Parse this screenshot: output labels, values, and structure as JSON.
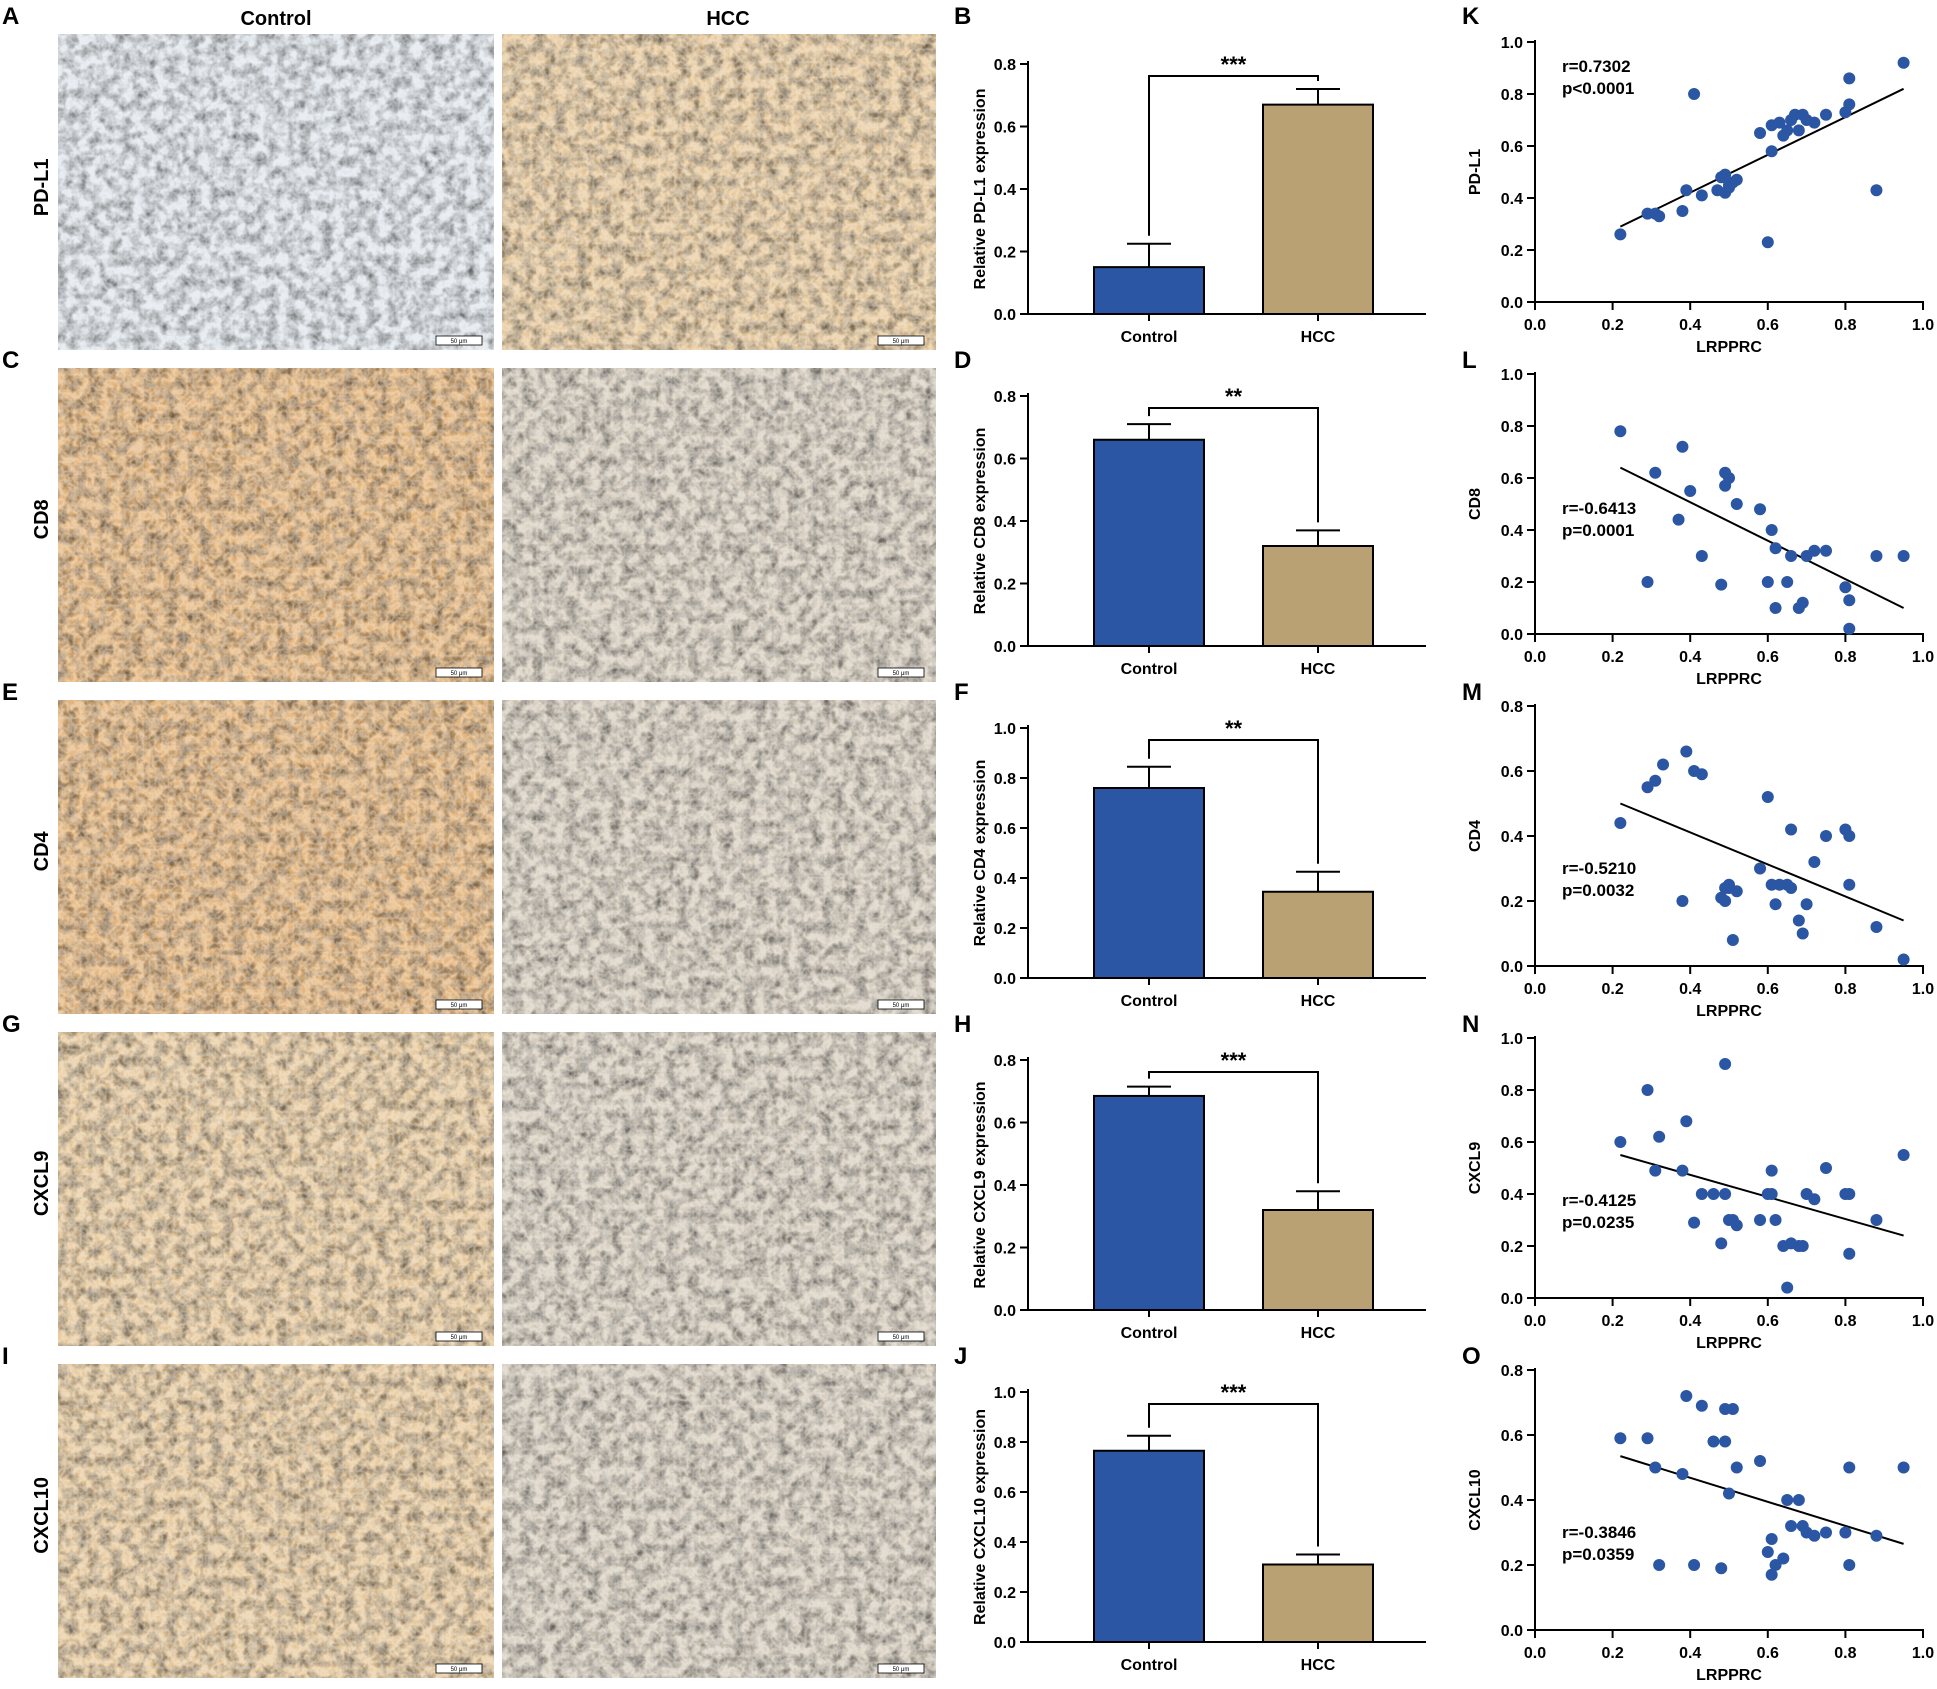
{
  "figure": {
    "micro_col_titles": [
      "Control",
      "HCC"
    ],
    "scale_bar_label": "50 μm",
    "colors": {
      "control_bar": "#2b56a3",
      "hcc_bar": "#b9a173",
      "scatter_point": "#2b56a3",
      "bar_stroke": "#000000"
    },
    "rows": [
      {
        "micro_letter": "A",
        "marker": "PD-L1",
        "bar_letter": "B",
        "scatter_letter": "K",
        "stain": {
          "control": "blue",
          "hcc": "brown"
        }
      },
      {
        "micro_letter": "C",
        "marker": "CD8",
        "bar_letter": "D",
        "scatter_letter": "L",
        "stain": {
          "control": "brown-strong",
          "hcc": "mixed"
        }
      },
      {
        "micro_letter": "E",
        "marker": "CD4",
        "bar_letter": "F",
        "scatter_letter": "M",
        "stain": {
          "control": "brown-strong",
          "hcc": "mixed"
        }
      },
      {
        "micro_letter": "G",
        "marker": "CXCL9",
        "bar_letter": "H",
        "scatter_letter": "N",
        "stain": {
          "control": "brown",
          "hcc": "mixed"
        }
      },
      {
        "micro_letter": "I",
        "marker": "CXCL10",
        "bar_letter": "J",
        "scatter_letter": "O",
        "stain": {
          "control": "brown",
          "hcc": "mixed"
        }
      }
    ]
  },
  "chart_data": [
    {
      "panel": "B",
      "type": "bar",
      "categories": [
        "Control",
        "HCC"
      ],
      "values": [
        0.15,
        0.67
      ],
      "errors": [
        0.075,
        0.05
      ],
      "ylabel": "Relative PD-L1 expression",
      "ylim": [
        0,
        0.8
      ],
      "yticks": [
        "0.0",
        "0.2",
        "0.4",
        "0.6",
        "0.8"
      ],
      "significance": "***"
    },
    {
      "panel": "D",
      "type": "bar",
      "categories": [
        "Control",
        "HCC"
      ],
      "values": [
        0.66,
        0.32
      ],
      "errors": [
        0.05,
        0.05
      ],
      "ylabel": "Relative CD8 expression",
      "ylim": [
        0,
        0.8
      ],
      "yticks": [
        "0.0",
        "0.2",
        "0.4",
        "0.6",
        "0.8"
      ],
      "significance": "**"
    },
    {
      "panel": "F",
      "type": "bar",
      "categories": [
        "Control",
        "HCC"
      ],
      "values": [
        0.76,
        0.345
      ],
      "errors": [
        0.085,
        0.08
      ],
      "ylabel": "Relative CD4 expression",
      "ylim": [
        0,
        1.0
      ],
      "yticks": [
        "0.0",
        "0.2",
        "0.4",
        "0.6",
        "0.8",
        "1.0"
      ],
      "significance": "**"
    },
    {
      "panel": "H",
      "type": "bar",
      "categories": [
        "Control",
        "HCC"
      ],
      "values": [
        0.685,
        0.32
      ],
      "errors": [
        0.03,
        0.06
      ],
      "ylabel": "Relative CXCL9 expression",
      "ylim": [
        0,
        0.8
      ],
      "yticks": [
        "0.0",
        "0.2",
        "0.4",
        "0.6",
        "0.8"
      ],
      "significance": "***"
    },
    {
      "panel": "J",
      "type": "bar",
      "categories": [
        "Control",
        "HCC"
      ],
      "values": [
        0.765,
        0.31
      ],
      "errors": [
        0.06,
        0.04
      ],
      "ylabel": "Relative CXCL10 expression",
      "ylim": [
        0,
        1.0
      ],
      "yticks": [
        "0.0",
        "0.2",
        "0.4",
        "0.6",
        "0.8",
        "1.0"
      ],
      "significance": "***"
    },
    {
      "panel": "K",
      "type": "scatter",
      "xlabel": "LRPPRC",
      "ylabel": "PD-L1",
      "xlim": [
        0,
        1
      ],
      "ylim": [
        0,
        1
      ],
      "xticks": [
        "0.0",
        "0.2",
        "0.4",
        "0.6",
        "0.8",
        "1.0"
      ],
      "yticks": [
        "0.0",
        "0.2",
        "0.4",
        "0.6",
        "0.8",
        "1.0"
      ],
      "stats": [
        "r=0.7302",
        "p<0.0001"
      ],
      "stats_pos": "top-left",
      "fit": [
        [
          0.22,
          0.29
        ],
        [
          0.95,
          0.82
        ]
      ],
      "x": [
        0.22,
        0.29,
        0.31,
        0.32,
        0.38,
        0.39,
        0.41,
        0.43,
        0.47,
        0.48,
        0.49,
        0.49,
        0.5,
        0.5,
        0.51,
        0.52,
        0.58,
        0.6,
        0.61,
        0.61,
        0.63,
        0.64,
        0.65,
        0.66,
        0.67,
        0.68,
        0.69,
        0.7,
        0.72,
        0.75,
        0.8,
        0.81,
        0.81,
        0.88,
        0.95
      ],
      "y": [
        0.26,
        0.34,
        0.34,
        0.33,
        0.35,
        0.43,
        0.8,
        0.41,
        0.43,
        0.48,
        0.49,
        0.42,
        0.45,
        0.44,
        0.46,
        0.47,
        0.65,
        0.23,
        0.68,
        0.58,
        0.69,
        0.64,
        0.66,
        0.7,
        0.72,
        0.66,
        0.72,
        0.7,
        0.69,
        0.72,
        0.73,
        0.76,
        0.86,
        0.43,
        0.92
      ]
    },
    {
      "panel": "L",
      "type": "scatter",
      "xlabel": "LRPPRC",
      "ylabel": "CD8",
      "xlim": [
        0,
        1
      ],
      "ylim": [
        0,
        1
      ],
      "xticks": [
        "0.0",
        "0.2",
        "0.4",
        "0.6",
        "0.8",
        "1.0"
      ],
      "yticks": [
        "0.0",
        "0.2",
        "0.4",
        "0.6",
        "0.8",
        "1.0"
      ],
      "stats": [
        "r=-0.6413",
        "p=0.0001"
      ],
      "stats_pos": "middle-left",
      "fit": [
        [
          0.22,
          0.64
        ],
        [
          0.95,
          0.1
        ]
      ],
      "x": [
        0.22,
        0.29,
        0.31,
        0.37,
        0.38,
        0.4,
        0.43,
        0.48,
        0.49,
        0.49,
        0.5,
        0.52,
        0.58,
        0.6,
        0.61,
        0.62,
        0.62,
        0.65,
        0.66,
        0.68,
        0.69,
        0.7,
        0.72,
        0.75,
        0.8,
        0.81,
        0.81,
        0.88,
        0.95
      ],
      "y": [
        0.78,
        0.2,
        0.62,
        0.44,
        0.72,
        0.55,
        0.3,
        0.19,
        0.57,
        0.62,
        0.6,
        0.5,
        0.48,
        0.2,
        0.4,
        0.1,
        0.33,
        0.2,
        0.3,
        0.1,
        0.12,
        0.3,
        0.32,
        0.32,
        0.18,
        0.02,
        0.13,
        0.3,
        0.3
      ]
    },
    {
      "panel": "M",
      "type": "scatter",
      "xlabel": "LRPPRC",
      "ylabel": "CD4",
      "xlim": [
        0,
        1
      ],
      "ylim": [
        0,
        0.8
      ],
      "xticks": [
        "0.0",
        "0.2",
        "0.4",
        "0.6",
        "0.8",
        "1.0"
      ],
      "yticks": [
        "0.0",
        "0.2",
        "0.4",
        "0.6",
        "0.8"
      ],
      "stats": [
        "r=-0.5210",
        "p=0.0032"
      ],
      "stats_pos": "bottom-left",
      "fit": [
        [
          0.22,
          0.5
        ],
        [
          0.95,
          0.14
        ]
      ],
      "x": [
        0.22,
        0.29,
        0.31,
        0.33,
        0.38,
        0.39,
        0.41,
        0.43,
        0.48,
        0.49,
        0.49,
        0.5,
        0.5,
        0.51,
        0.52,
        0.58,
        0.6,
        0.61,
        0.62,
        0.63,
        0.65,
        0.66,
        0.66,
        0.68,
        0.69,
        0.7,
        0.72,
        0.75,
        0.8,
        0.81,
        0.81,
        0.88,
        0.95
      ],
      "y": [
        0.44,
        0.55,
        0.57,
        0.62,
        0.2,
        0.66,
        0.6,
        0.59,
        0.21,
        0.24,
        0.2,
        0.25,
        0.24,
        0.08,
        0.23,
        0.3,
        0.52,
        0.25,
        0.19,
        0.25,
        0.25,
        0.24,
        0.42,
        0.14,
        0.1,
        0.19,
        0.32,
        0.4,
        0.42,
        0.4,
        0.25,
        0.12,
        0.02
      ]
    },
    {
      "panel": "N",
      "type": "scatter",
      "xlabel": "LRPPRC",
      "ylabel": "CXCL9",
      "xlim": [
        0,
        1
      ],
      "ylim": [
        0,
        1
      ],
      "xticks": [
        "0.0",
        "0.2",
        "0.4",
        "0.6",
        "0.8",
        "1.0"
      ],
      "yticks": [
        "0.0",
        "0.2",
        "0.4",
        "0.6",
        "0.8",
        "1.0"
      ],
      "stats": [
        "r=-0.4125",
        "p=0.0235"
      ],
      "stats_pos": "bottom-left",
      "fit": [
        [
          0.22,
          0.55
        ],
        [
          0.95,
          0.24
        ]
      ],
      "x": [
        0.22,
        0.29,
        0.31,
        0.32,
        0.38,
        0.39,
        0.41,
        0.43,
        0.46,
        0.48,
        0.49,
        0.49,
        0.5,
        0.51,
        0.52,
        0.58,
        0.6,
        0.61,
        0.61,
        0.62,
        0.64,
        0.65,
        0.66,
        0.68,
        0.69,
        0.7,
        0.72,
        0.75,
        0.8,
        0.81,
        0.81,
        0.88,
        0.95
      ],
      "y": [
        0.6,
        0.8,
        0.49,
        0.62,
        0.49,
        0.68,
        0.29,
        0.4,
        0.4,
        0.21,
        0.4,
        0.9,
        0.3,
        0.3,
        0.28,
        0.3,
        0.4,
        0.4,
        0.49,
        0.3,
        0.2,
        0.04,
        0.21,
        0.2,
        0.2,
        0.4,
        0.38,
        0.5,
        0.4,
        0.4,
        0.17,
        0.3,
        0.55
      ]
    },
    {
      "panel": "O",
      "type": "scatter",
      "xlabel": "LRPPRC",
      "ylabel": "CXCL10",
      "xlim": [
        0,
        1
      ],
      "ylim": [
        0,
        0.8
      ],
      "xticks": [
        "0.0",
        "0.2",
        "0.4",
        "0.6",
        "0.8",
        "1.0"
      ],
      "yticks": [
        "0.0",
        "0.2",
        "0.4",
        "0.6",
        "0.8"
      ],
      "stats": [
        "r=-0.3846",
        "p=0.0359"
      ],
      "stats_pos": "bottom-left",
      "fit": [
        [
          0.22,
          0.535
        ],
        [
          0.95,
          0.265
        ]
      ],
      "x": [
        0.22,
        0.29,
        0.31,
        0.32,
        0.38,
        0.39,
        0.41,
        0.43,
        0.46,
        0.48,
        0.49,
        0.49,
        0.5,
        0.51,
        0.52,
        0.58,
        0.6,
        0.61,
        0.61,
        0.62,
        0.64,
        0.65,
        0.66,
        0.68,
        0.69,
        0.7,
        0.72,
        0.75,
        0.8,
        0.81,
        0.81,
        0.88,
        0.95
      ],
      "y": [
        0.59,
        0.59,
        0.5,
        0.2,
        0.48,
        0.72,
        0.2,
        0.69,
        0.58,
        0.19,
        0.58,
        0.68,
        0.42,
        0.68,
        0.5,
        0.52,
        0.24,
        0.17,
        0.28,
        0.2,
        0.22,
        0.4,
        0.32,
        0.4,
        0.32,
        0.3,
        0.29,
        0.3,
        0.3,
        0.5,
        0.2,
        0.29,
        0.5
      ]
    }
  ]
}
